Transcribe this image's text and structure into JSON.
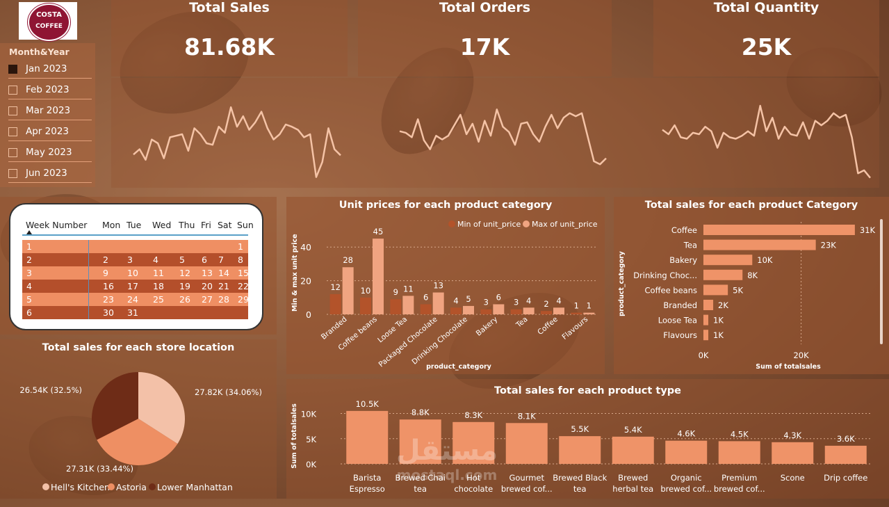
{
  "logo": {
    "text_top": "COSTA",
    "text_bottom": "COFFEE"
  },
  "kpis": [
    {
      "title": "Total Sales",
      "value": "81.68K"
    },
    {
      "title": "Total Orders",
      "value": "17K"
    },
    {
      "title": "Total Quantity",
      "value": "25K"
    }
  ],
  "sparklines": {
    "sales": [
      0.35,
      0.42,
      0.28,
      0.55,
      0.5,
      0.3,
      0.58,
      0.6,
      0.62,
      0.4,
      0.7,
      0.62,
      0.5,
      0.48,
      0.72,
      0.64,
      0.98,
      0.72,
      0.86,
      0.68,
      0.78,
      0.92,
      0.7,
      0.55,
      0.62,
      0.75,
      0.72,
      0.68,
      0.58,
      0.62,
      0.05,
      0.25,
      0.7,
      0.42,
      0.34
    ],
    "orders": [
      0.66,
      0.64,
      0.58,
      0.82,
      0.54,
      0.42,
      0.6,
      0.55,
      0.6,
      0.74,
      0.88,
      0.62,
      0.76,
      0.52,
      0.8,
      0.6,
      0.95,
      0.72,
      0.65,
      0.48,
      0.76,
      0.78,
      0.62,
      0.52,
      0.72,
      0.88,
      0.7,
      0.84,
      0.9,
      0.86,
      0.9,
      0.58,
      0.26,
      0.22,
      0.3
    ],
    "quantity": [
      0.68,
      0.62,
      0.74,
      0.58,
      0.56,
      0.64,
      0.62,
      0.72,
      0.66,
      0.44,
      0.64,
      0.58,
      0.56,
      0.6,
      0.66,
      0.6,
      1.0,
      0.66,
      0.84,
      0.56,
      0.72,
      0.62,
      0.6,
      0.78,
      0.56,
      0.8,
      0.74,
      0.8,
      0.9,
      0.84,
      0.88,
      0.58,
      0.1,
      0.14,
      0.04
    ]
  },
  "slicer": {
    "title": "Month&Year",
    "items": [
      {
        "label": "Jan 2023",
        "selected": true
      },
      {
        "label": "Feb 2023",
        "selected": false
      },
      {
        "label": "Mar 2023",
        "selected": false
      },
      {
        "label": "Apr 2023",
        "selected": false
      },
      {
        "label": "May 2023",
        "selected": false
      },
      {
        "label": "Jun 2023",
        "selected": false
      }
    ]
  },
  "calendar": {
    "headers": [
      "Week Number",
      "Mon",
      "Tue",
      "Wed",
      "Thu",
      "Fri",
      "Sat",
      "Sun"
    ],
    "rows": [
      [
        "1",
        "",
        "",
        "",
        "",
        "",
        "",
        "1"
      ],
      [
        "2",
        "2",
        "3",
        "4",
        "5",
        "6",
        "7",
        "8"
      ],
      [
        "3",
        "9",
        "10",
        "11",
        "12",
        "13",
        "14",
        "15"
      ],
      [
        "4",
        "16",
        "17",
        "18",
        "19",
        "20",
        "21",
        "22"
      ],
      [
        "5",
        "23",
        "24",
        "25",
        "26",
        "27",
        "28",
        "29"
      ],
      [
        "6",
        "30",
        "31",
        "",
        "",
        "",
        "",
        ""
      ]
    ]
  },
  "chart_data": [
    {
      "id": "unit-prices",
      "type": "bar",
      "title": "Unit prices for each product category",
      "xlabel": "product_category",
      "ylabel": "Min & max unit price",
      "categories": [
        "Branded",
        "Coffee beans",
        "Loose Tea",
        "Packaged Chocolate",
        "Drinking Chocolate",
        "Bakery",
        "Tea",
        "Coffee",
        "Flavours"
      ],
      "series": [
        {
          "name": "Min of unit_price",
          "values": [
            12,
            10,
            9,
            6,
            4,
            3,
            3,
            2,
            1
          ],
          "labels": [
            "12",
            "10",
            "9",
            "6",
            "4",
            "3",
            "3",
            "2",
            "1"
          ],
          "color": "#b3532a"
        },
        {
          "name": "Max of unit_price",
          "values": [
            28,
            45,
            11,
            13,
            5,
            6,
            4,
            4,
            1
          ],
          "labels": [
            "28",
            "45",
            "11",
            "13",
            "5",
            "6",
            "4",
            "4",
            "1"
          ],
          "color": "#f0a481"
        }
      ],
      "ylim": [
        0,
        50
      ],
      "yticks": [
        0,
        20,
        40
      ],
      "legend": "top-right"
    },
    {
      "id": "sales-category",
      "type": "bar",
      "orientation": "horizontal",
      "title": "Total sales for each product Category",
      "xlabel": "Sum of totalsales",
      "ylabel": "product_category",
      "categories": [
        "Coffee",
        "Tea",
        "Bakery",
        "Drinking Choc...",
        "Coffee beans",
        "Branded",
        "Loose Tea",
        "Flavours"
      ],
      "values": [
        31000,
        23000,
        10000,
        8000,
        5000,
        2000,
        1000,
        1000
      ],
      "labels": [
        "31K",
        "23K",
        "10K",
        "8K",
        "5K",
        "2K",
        "1K",
        "1K"
      ],
      "xlim": [
        0,
        35000
      ],
      "xticks": [
        {
          "v": 0,
          "label": "0K"
        },
        {
          "v": 20000,
          "label": "20K"
        }
      ],
      "color": "#ef9368"
    },
    {
      "id": "sales-store",
      "type": "pie",
      "title": "Total sales for each store location",
      "slices": [
        {
          "name": "Hell's Kitchen",
          "value": 27.82,
          "label": "27.82K (34.06%)",
          "color": "#f3c1a8"
        },
        {
          "name": "Astoria",
          "value": 27.31,
          "label": "27.31K (33.44%)",
          "color": "#ee8f63"
        },
        {
          "name": "Lower Manhattan",
          "value": 26.54,
          "label": "26.54K (32.5%)",
          "color": "#6e2c17"
        }
      ],
      "legend": "bottom"
    },
    {
      "id": "sales-type",
      "type": "bar",
      "title": "Total sales for each product type",
      "xlabel": "",
      "ylabel": "Sum of totalsales",
      "categories": [
        [
          "Barista",
          "Espresso"
        ],
        [
          "Brewed Chai",
          "tea"
        ],
        [
          "Hot",
          "chocolate"
        ],
        [
          "Gourmet",
          "brewed cof..."
        ],
        [
          "Brewed Black",
          "tea"
        ],
        [
          "Brewed",
          "herbal tea"
        ],
        [
          "Organic",
          "brewed cof..."
        ],
        [
          "Premium",
          "brewed cof..."
        ],
        [
          "Scone",
          ""
        ],
        [
          "Drip coffee",
          ""
        ]
      ],
      "values": [
        10500,
        8800,
        8300,
        8100,
        5500,
        5400,
        4600,
        4500,
        4300,
        3600
      ],
      "labels": [
        "10.5K",
        "8.8K",
        "8.3K",
        "8.1K",
        "5.5K",
        "5.4K",
        "4.6K",
        "4.5K",
        "4.3K",
        "3.6K"
      ],
      "ylim": [
        0,
        12000
      ],
      "yticks": [
        {
          "v": 0,
          "label": "0K"
        },
        {
          "v": 5000,
          "label": "5K"
        },
        {
          "v": 10000,
          "label": "10K"
        }
      ],
      "color": "#ef9368"
    }
  ],
  "watermark": {
    "arabic": "مستقل",
    "latin": "mostaql.com"
  }
}
